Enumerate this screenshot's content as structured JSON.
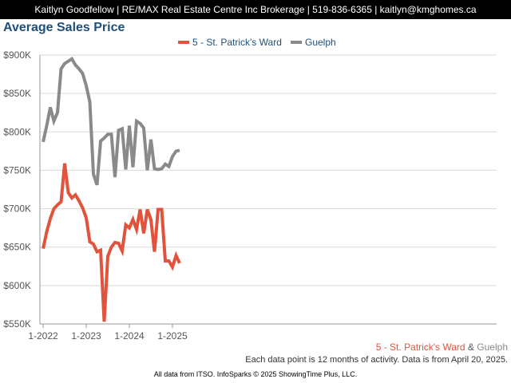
{
  "header": {
    "contact_bar": "Kaitlyn Goodfellow | RE/MAX Real Estate Centre Inc Brokerage | 519-836-6365 | kaitlyn@kmghomes.ca"
  },
  "bottom_legend": {
    "series1": "5 - St. Patrick's Ward",
    "amp": "&",
    "series2": "Guelph"
  },
  "note": "Each data point is 12 months of activity. Data is from April 20, 2025.",
  "footer": "All data from ITSO. InfoSparks © 2025 ShowingTime Plus, LLC.",
  "colors": {
    "series1": "#e0533d",
    "series2": "#8a8a8a",
    "title": "#1f4e79",
    "grid": "#d9d9d9"
  },
  "chart_data": {
    "type": "line",
    "title": "Average Sales Price",
    "xlabel": "",
    "ylabel": "",
    "ylim": [
      550000,
      900000
    ],
    "y_ticks": [
      {
        "value": 550000,
        "label": "$550K"
      },
      {
        "value": 600000,
        "label": "$600K"
      },
      {
        "value": 650000,
        "label": "$650K"
      },
      {
        "value": 700000,
        "label": "$700K"
      },
      {
        "value": 750000,
        "label": "$750K"
      },
      {
        "value": 800000,
        "label": "$800K"
      },
      {
        "value": 850000,
        "label": "$850K"
      },
      {
        "value": 900000,
        "label": "$900K"
      }
    ],
    "x_ticks": [
      {
        "index": 0,
        "label": "1-2022"
      },
      {
        "index": 12,
        "label": "1-2023"
      },
      {
        "index": 24,
        "label": "1-2024"
      },
      {
        "index": 36,
        "label": "1-2025"
      }
    ],
    "x": [
      "1-2022",
      "2-2022",
      "3-2022",
      "4-2022",
      "5-2022",
      "6-2022",
      "7-2022",
      "8-2022",
      "9-2022",
      "10-2022",
      "11-2022",
      "12-2022",
      "1-2023",
      "2-2023",
      "3-2023",
      "4-2023",
      "5-2023",
      "6-2023",
      "7-2023",
      "8-2023",
      "9-2023",
      "10-2023",
      "11-2023",
      "12-2023",
      "1-2024",
      "2-2024",
      "3-2024",
      "4-2024",
      "5-2024",
      "6-2024",
      "7-2024",
      "8-2024",
      "9-2024",
      "10-2024",
      "11-2024",
      "12-2024",
      "1-2025",
      "2-2025",
      "3-2025"
    ],
    "series": [
      {
        "name": "5 - St. Patrick's Ward",
        "values": [
          648000,
          670000,
          687000,
          700000,
          705000,
          709000,
          759000,
          721000,
          714000,
          718000,
          710000,
          701000,
          688000,
          657000,
          654000,
          644000,
          646000,
          553000,
          638000,
          650000,
          656000,
          655000,
          645000,
          679000,
          675000,
          686000,
          673000,
          699000,
          668000,
          699000,
          686000,
          644000,
          699000,
          699000,
          632000,
          632000,
          624000,
          639000,
          629000
        ]
      },
      {
        "name": "Guelph",
        "values": [
          787000,
          808000,
          832000,
          814000,
          825000,
          882000,
          889000,
          892000,
          895000,
          887000,
          882000,
          876000,
          860000,
          839000,
          745000,
          731000,
          788000,
          792000,
          797000,
          797000,
          741000,
          802000,
          804000,
          751000,
          808000,
          754000,
          814000,
          811000,
          805000,
          750000,
          790000,
          752000,
          751000,
          752000,
          758000,
          755000,
          768000,
          775000,
          776000
        ]
      }
    ],
    "legend_position": "top"
  }
}
